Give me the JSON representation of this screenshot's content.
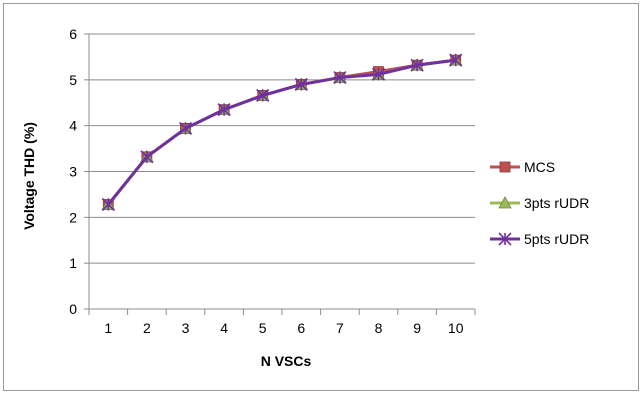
{
  "chart_data": {
    "type": "line",
    "title": "",
    "xlabel": "N VSCs",
    "ylabel": "Voltage THD (%)",
    "categories": [
      "1",
      "2",
      "3",
      "4",
      "5",
      "6",
      "7",
      "8",
      "9",
      "10"
    ],
    "yticks": [
      "0",
      "1",
      "2",
      "3",
      "4",
      "5",
      "6"
    ],
    "ylim": [
      0,
      6
    ],
    "grid": "horizontal",
    "legend_position": "right",
    "series": [
      {
        "name": "MCS",
        "color": "#c0504d",
        "marker": "square",
        "values": [
          2.28,
          3.32,
          3.94,
          4.35,
          4.66,
          4.9,
          5.05,
          5.18,
          5.32,
          5.43
        ]
      },
      {
        "name": "3pts rUDR",
        "color": "#9bbb59",
        "marker": "triangle",
        "values": [
          2.28,
          3.32,
          3.94,
          4.35,
          4.66,
          4.9,
          5.05,
          5.12,
          5.32,
          5.43
        ]
      },
      {
        "name": "5pts rUDR",
        "color": "#7030a0",
        "marker": "star",
        "values": [
          2.28,
          3.32,
          3.94,
          4.35,
          4.66,
          4.9,
          5.05,
          5.12,
          5.32,
          5.43
        ]
      }
    ]
  }
}
